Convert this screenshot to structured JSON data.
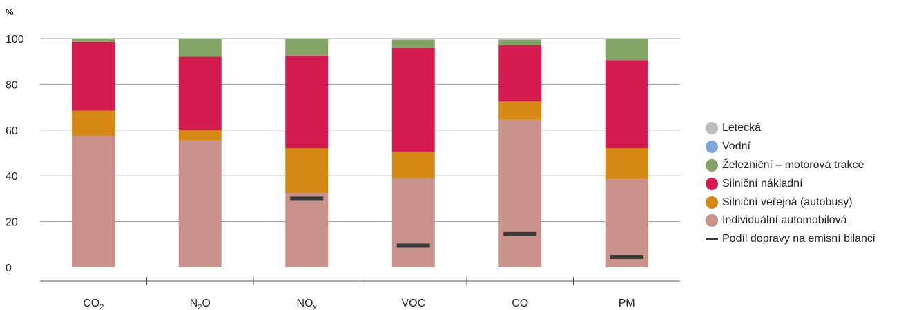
{
  "chart_data": {
    "type": "bar",
    "stacked": true,
    "ylabel": "%",
    "ylim": [
      0,
      100
    ],
    "yticks": [
      "0",
      "20",
      "40",
      "60",
      "80",
      "100"
    ],
    "grid": true,
    "legend_position": "right",
    "categories": [
      {
        "main": "CO",
        "sub": "2",
        "after": ""
      },
      {
        "main": "N",
        "sub": "2",
        "after": "O"
      },
      {
        "main": "NO",
        "sub": "x",
        "after": ""
      },
      {
        "main": "VOC",
        "sub": "",
        "after": ""
      },
      {
        "main": "CO",
        "sub": "",
        "after": ""
      },
      {
        "main": "PM",
        "sub": "",
        "after": ""
      }
    ],
    "series": [
      {
        "name": "Individuální automobilová",
        "color": "#c9928a",
        "values": [
          57.5,
          55.5,
          32.5,
          39,
          64.5,
          38.5
        ]
      },
      {
        "name": "Silniční veřejná (autobusy)",
        "color": "#d68914",
        "values": [
          11,
          4.5,
          19.5,
          11.5,
          8,
          13.5
        ]
      },
      {
        "name": "Silniční nákladní",
        "color": "#d41b4f",
        "values": [
          30,
          32,
          40.5,
          45.5,
          24.5,
          38.5
        ]
      },
      {
        "name": "Železniční – motorová trakce",
        "color": "#83a667",
        "values": [
          1.5,
          8,
          7.5,
          3.5,
          2.5,
          9.5
        ]
      },
      {
        "name": "Vodní",
        "color": "#7ea7d8",
        "values": [
          0,
          0,
          0,
          0,
          0,
          0
        ]
      },
      {
        "name": "Letecká",
        "color": "#bdbdbd",
        "values": [
          0,
          0,
          0,
          0.5,
          0.5,
          0
        ]
      }
    ],
    "marker": {
      "name": "Podíl dopravy na emisní bilanci",
      "color": "#3a3a3a",
      "values": [
        null,
        null,
        30,
        9.5,
        14.5,
        4.5
      ]
    }
  },
  "legend": [
    {
      "label": "Letecká",
      "color": "#bdbdbd",
      "kind": "dot"
    },
    {
      "label": "Vodní",
      "color": "#7ea7d8",
      "kind": "dot"
    },
    {
      "label": "Železniční – motorová trakce",
      "color": "#83a667",
      "kind": "dot"
    },
    {
      "label": "Silniční nákladní",
      "color": "#d41b4f",
      "kind": "dot"
    },
    {
      "label": "Silniční veřejná (autobusy)",
      "color": "#d68914",
      "kind": "dot"
    },
    {
      "label": "Individuální automobilová",
      "color": "#c9928a",
      "kind": "dot"
    },
    {
      "label": "Podíl dopravy na emisní bilanci",
      "color": "#3a3a3a",
      "kind": "line"
    }
  ]
}
